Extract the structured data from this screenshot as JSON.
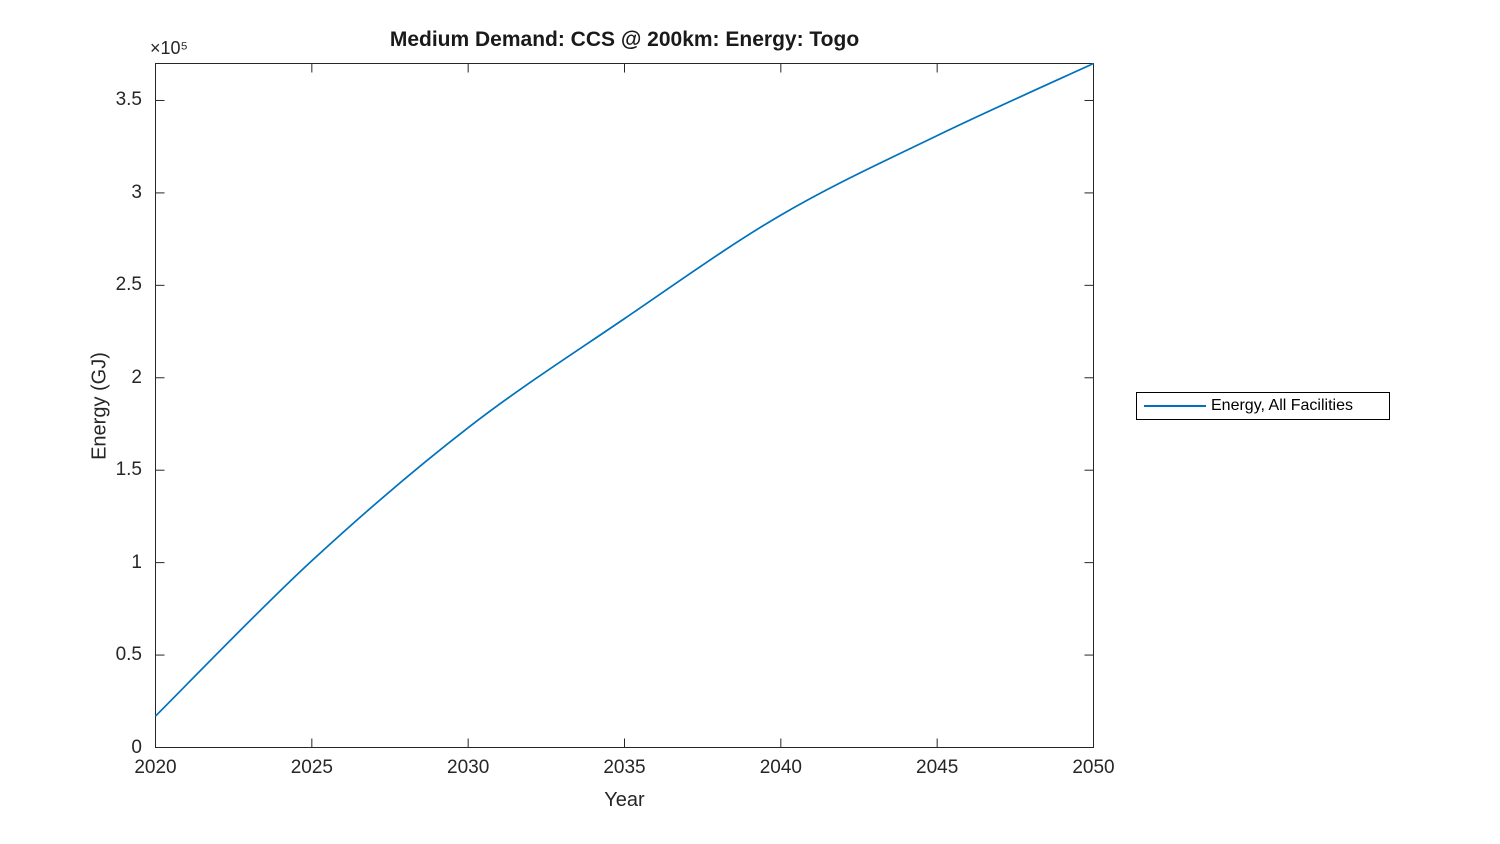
{
  "chart_data": {
    "type": "line",
    "title": "Medium Demand: CCS @ 200km: Energy: Togo",
    "xlabel": "Year",
    "ylabel": "Energy (GJ)",
    "y_axis_multiplier": "×10⁵",
    "x": [
      2020,
      2025,
      2030,
      2035,
      2040,
      2045,
      2050
    ],
    "series": [
      {
        "name": "Energy, All Facilities",
        "color": "#0072BD",
        "values": [
          17000,
          101000,
          173000,
          232000,
          288000,
          331000,
          370000
        ]
      }
    ],
    "xlim": [
      2020,
      2050
    ],
    "ylim": [
      0,
      370000
    ],
    "x_ticks": [
      2020,
      2025,
      2030,
      2035,
      2040,
      2045,
      2050
    ],
    "y_ticks": [
      0,
      50000,
      100000,
      150000,
      200000,
      250000,
      300000,
      350000
    ],
    "y_tick_labels": [
      "0",
      "0.5",
      "1",
      "1.5",
      "2",
      "2.5",
      "3",
      "3.5"
    ],
    "grid": false,
    "legend_position": "right-outside"
  },
  "colors": {
    "line": "#0072BD",
    "axis": "#262626",
    "background": "#ffffff"
  }
}
